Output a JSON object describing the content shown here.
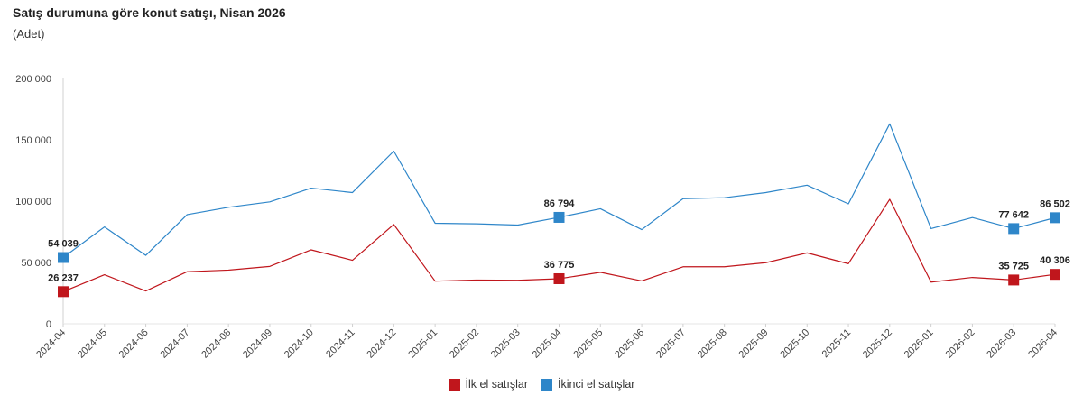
{
  "chart_data": {
    "type": "line",
    "title": "Satış durumuna göre konut satışı, Nisan 2026",
    "subtitle": "(Adet)",
    "categories": [
      "2024-04",
      "2024-05",
      "2024-06",
      "2024-07",
      "2024-08",
      "2024-09",
      "2024-10",
      "2024-11",
      "2024-12",
      "2025-01",
      "2025-02",
      "2025-03",
      "2025-04",
      "2025-05",
      "2025-06",
      "2025-07",
      "2025-08",
      "2025-09",
      "2025-10",
      "2025-11",
      "2025-12",
      "2026-01",
      "2026-02",
      "2026-03",
      "2026-04"
    ],
    "ylim": [
      0,
      200000
    ],
    "yticks": [
      0,
      50000,
      100000,
      150000,
      200000
    ],
    "ytick_labels": [
      "0",
      "50 000",
      "100 000",
      "150 000",
      "200 000"
    ],
    "series": [
      {
        "name": "İlk el satışlar",
        "color": "#c0161c",
        "values": [
          26237,
          40000,
          26800,
          42500,
          43800,
          46800,
          60300,
          51800,
          81000,
          34800,
          35700,
          35500,
          36775,
          42000,
          35000,
          46500,
          46500,
          49800,
          57800,
          49000,
          101500,
          34000,
          37800,
          35725,
          40306
        ],
        "labeled_points": [
          {
            "index": 0,
            "label": "26 237"
          },
          {
            "index": 12,
            "label": "36 775"
          },
          {
            "index": 23,
            "label": "35 725"
          },
          {
            "index": 24,
            "label": "40 306"
          }
        ]
      },
      {
        "name": "İkinci el satışlar",
        "color": "#2e86c9",
        "values": [
          54039,
          79000,
          55800,
          89000,
          95000,
          99400,
          110600,
          107000,
          140800,
          82000,
          81500,
          80500,
          86794,
          93800,
          76800,
          102000,
          102800,
          107000,
          113000,
          97800,
          163000,
          77600,
          86600,
          77642,
          86502
        ],
        "labeled_points": [
          {
            "index": 0,
            "label": "54 039"
          },
          {
            "index": 12,
            "label": "86 794"
          },
          {
            "index": 23,
            "label": "77 642"
          },
          {
            "index": 24,
            "label": "86 502"
          }
        ]
      }
    ]
  }
}
